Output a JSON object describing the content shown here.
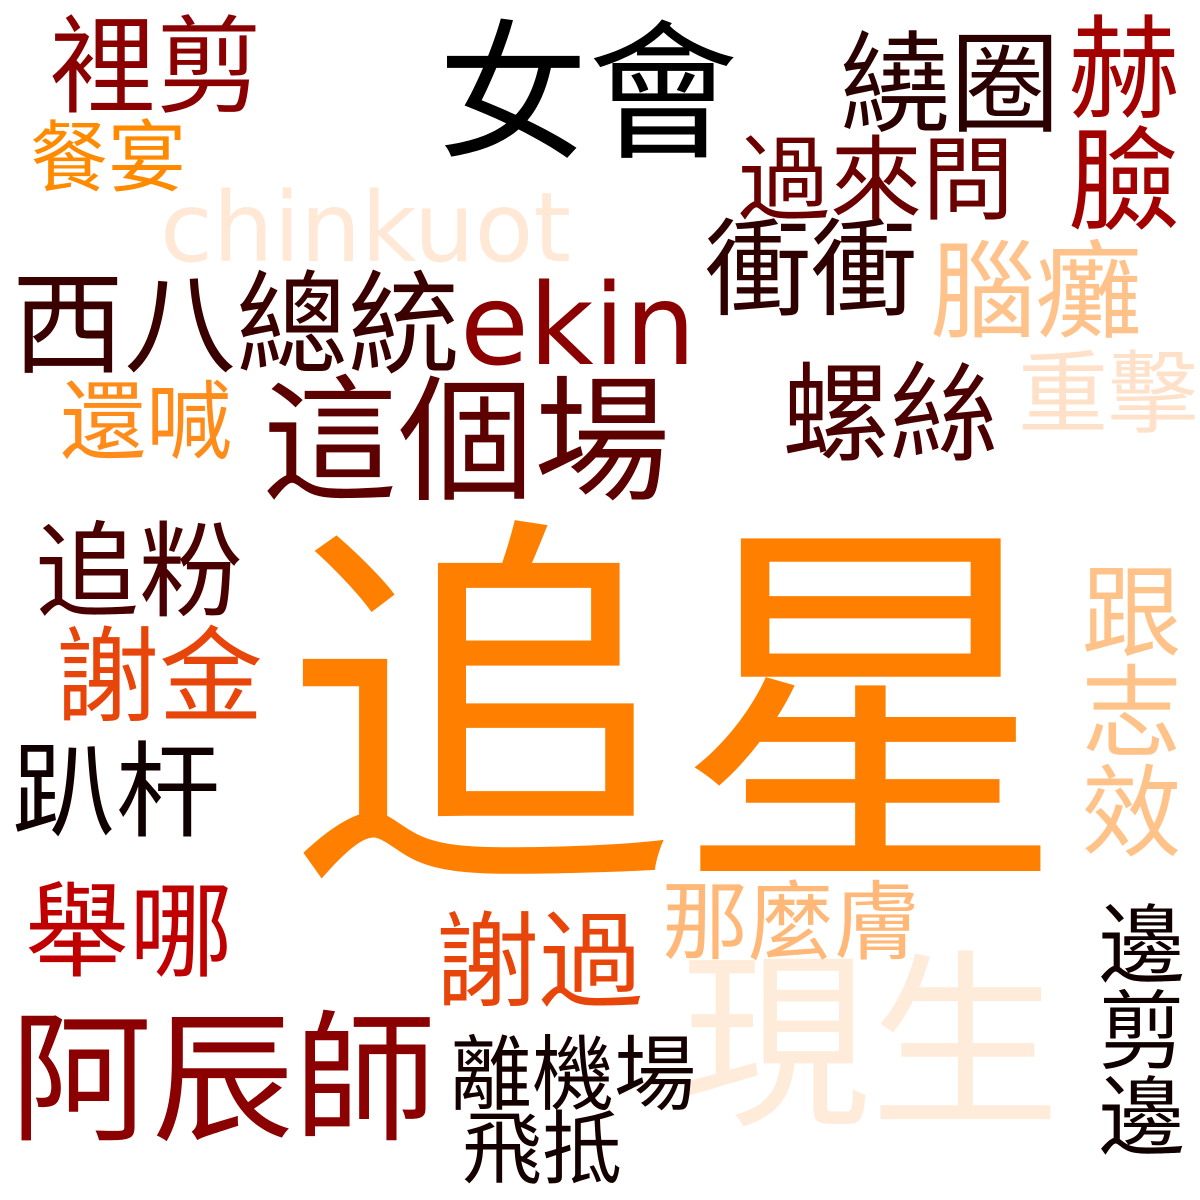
{
  "cloud": {
    "words": [
      {
        "text": "追星",
        "color": "#FF8000"
      },
      {
        "text": "現生",
        "color": "#FFEBD9"
      },
      {
        "text": "這個場",
        "color": "#5C0000"
      },
      {
        "text": "女會",
        "color": "#000000"
      },
      {
        "text": "阿辰師",
        "color": "#8B0000"
      },
      {
        "text": "chinkuot",
        "color": "#FFE9D6"
      },
      {
        "text": "西八總統",
        "color": "#3A0000"
      },
      {
        "text": "ekin",
        "color": "#8B0000"
      },
      {
        "text": "跟志效",
        "color": "#FFC38A"
      },
      {
        "text": "繞圈",
        "color": "#2A0000"
      },
      {
        "text": "赫臉",
        "color": "#A30000"
      },
      {
        "text": "過來問",
        "color": "#6B0000"
      },
      {
        "text": "衝衝",
        "color": "#2E0000"
      },
      {
        "text": "腦癱",
        "color": "#FFC28A"
      },
      {
        "text": "螺絲",
        "color": "#4A0000"
      },
      {
        "text": "重擊",
        "color": "#FFE0C8"
      },
      {
        "text": "裡剪",
        "color": "#8B0000"
      },
      {
        "text": "餐宴",
        "color": "#FF8A00"
      },
      {
        "text": "還喊",
        "color": "#FF8C1A"
      },
      {
        "text": "追粉",
        "color": "#4A0000"
      },
      {
        "text": "謝金",
        "color": "#E8450A"
      },
      {
        "text": "趴杆",
        "color": "#100000"
      },
      {
        "text": "舉哪",
        "color": "#C00000"
      },
      {
        "text": "謝過",
        "color": "#E8450A"
      },
      {
        "text": "那麼膚",
        "color": "#FFB878"
      },
      {
        "text": "離機場",
        "color": "#150000"
      },
      {
        "text": "飛抵",
        "color": "#150000"
      },
      {
        "text": "邊剪邊",
        "color": "#100000"
      }
    ]
  }
}
